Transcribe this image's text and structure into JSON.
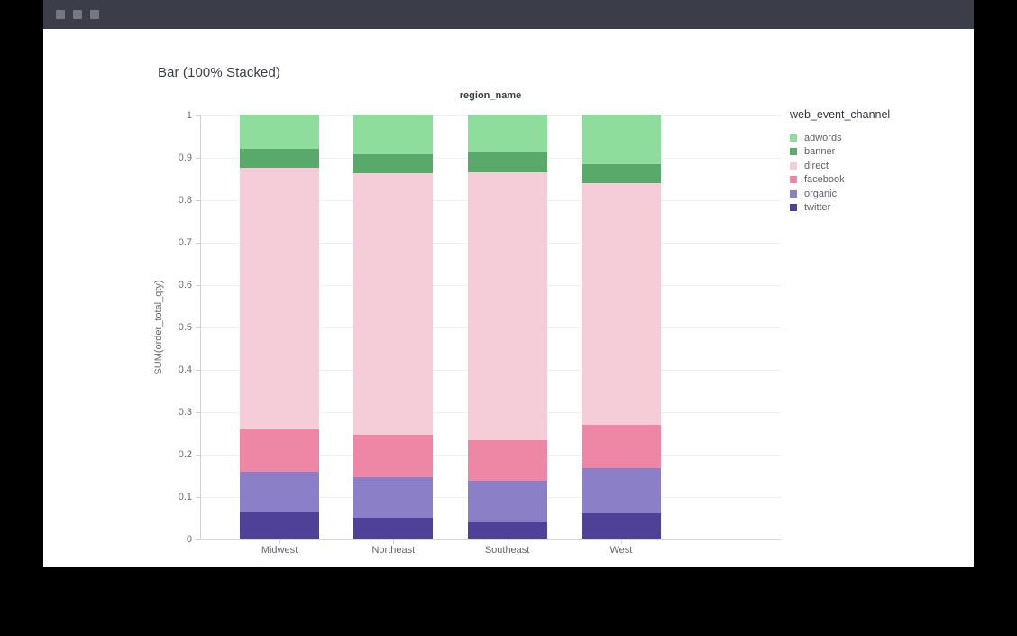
{
  "window": {
    "titlebar_color": "#3b3e49",
    "control_dot_color": "#757884",
    "control_dot_count": 3
  },
  "chart_data": {
    "type": "bar",
    "stacked": "100%",
    "title": "Bar (100% Stacked)",
    "x_axis_title": "region_name",
    "ylabel": "SUM(order_total_qty)",
    "legend_title": "web_event_channel",
    "legend_position": "right",
    "grid": true,
    "ylim": [
      0,
      1
    ],
    "y_ticks": [
      0,
      0.1,
      0.2,
      0.3,
      0.4,
      0.5,
      0.6,
      0.7,
      0.8,
      0.9,
      1
    ],
    "categories": [
      "Midwest",
      "Northeast",
      "Southeast",
      "West"
    ],
    "series": [
      {
        "name": "adwords",
        "color": "#8fdd9d",
        "values": [
          0.081,
          0.093,
          0.088,
          0.118
        ]
      },
      {
        "name": "banner",
        "color": "#58a96a",
        "values": [
          0.044,
          0.046,
          0.049,
          0.043
        ]
      },
      {
        "name": "direct",
        "color": "#f4cdd9",
        "values": [
          0.617,
          0.616,
          0.632,
          0.571
        ]
      },
      {
        "name": "facebook",
        "color": "#ee87a6",
        "values": [
          0.1,
          0.101,
          0.094,
          0.101
        ]
      },
      {
        "name": "organic",
        "color": "#8b80c8",
        "values": [
          0.096,
          0.096,
          0.098,
          0.107
        ]
      },
      {
        "name": "twitter",
        "color": "#4e4197",
        "values": [
          0.062,
          0.048,
          0.039,
          0.06
        ]
      }
    ],
    "stack_order_bottom_to_top": [
      "twitter",
      "organic",
      "facebook",
      "direct",
      "banner",
      "adwords"
    ]
  }
}
